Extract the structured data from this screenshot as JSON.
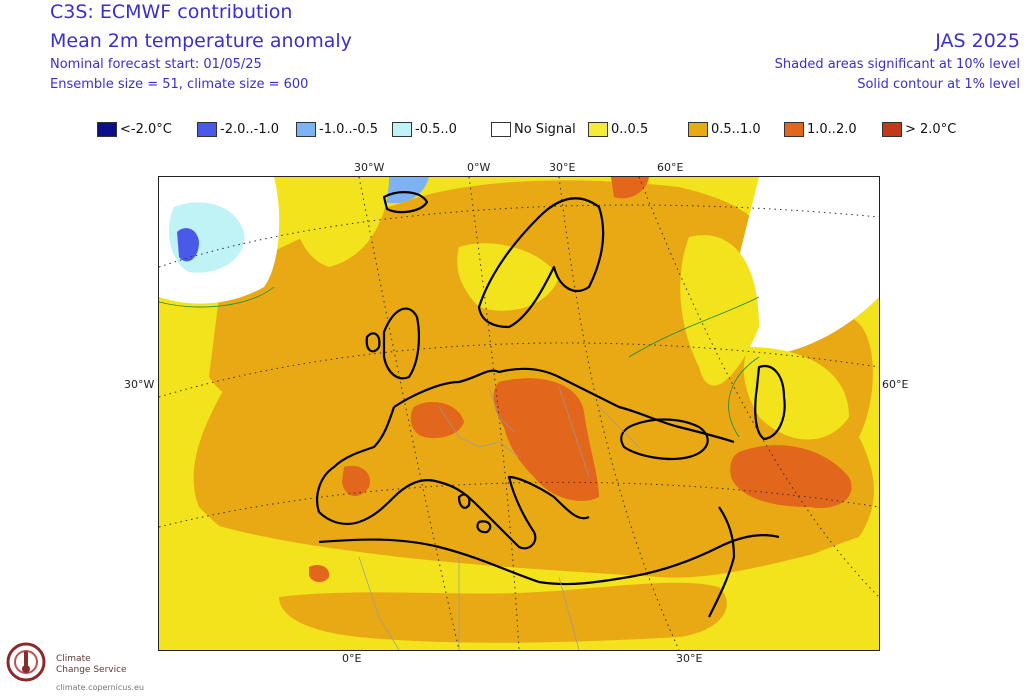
{
  "header": {
    "title": "C3S: ECMWF contribution",
    "subtitle": "Mean 2m temperature anomaly",
    "forecast_start": "Nominal forecast start: 01/05/25",
    "ensemble": "Ensemble size = 51, climate size = 600",
    "season": "JAS 2025",
    "sig_note": "Shaded areas significant at 10% level",
    "contour_note": "Solid contour at 1% level"
  },
  "legend": [
    {
      "label": "<-2.0°C",
      "color": "#0b0f8a"
    },
    {
      "label": "-2.0..-1.0",
      "color": "#4a5ae8"
    },
    {
      "label": "-1.0..-0.5",
      "color": "#7fb2f2"
    },
    {
      "label": "-0.5..0",
      "color": "#bff3f5"
    },
    {
      "label": "No Signal",
      "color": "#ffffff"
    },
    {
      "label": "0..0.5",
      "color": "#f5ec3a"
    },
    {
      "label": "0.5..1.0",
      "color": "#e8a914"
    },
    {
      "label": "1.0..2.0",
      "color": "#e2661c"
    },
    {
      "label": "> 2.0°C",
      "color": "#c03a1a"
    }
  ],
  "grid_labels": {
    "top": [
      "30°W",
      "0°W",
      "30°E",
      "60°E"
    ],
    "left": "30°W",
    "right": "60°E",
    "bottom": [
      "0°E",
      "30°E"
    ]
  },
  "logo": {
    "line1": "Climate",
    "line2": "Change Service",
    "url": "climate.copernicus.eu"
  }
}
